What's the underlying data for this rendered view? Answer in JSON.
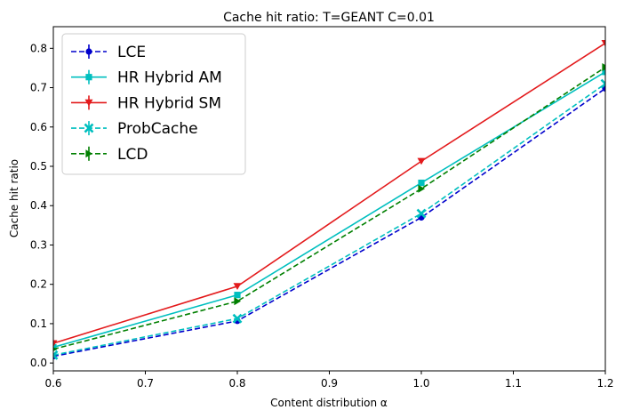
{
  "chart_data": {
    "type": "line",
    "title": "Cache hit ratio: T=GEANT C=0.01",
    "xlabel": "Content distribution α",
    "ylabel": "Cache hit ratio",
    "xlim": [
      0.6,
      1.2
    ],
    "ylim": [
      -0.02,
      0.855
    ],
    "xticks": [
      "0.6",
      "0.7",
      "0.8",
      "0.9",
      "1.0",
      "1.1",
      "1.2"
    ],
    "yticks": [
      "0.0",
      "0.1",
      "0.2",
      "0.3",
      "0.4",
      "0.5",
      "0.6",
      "0.7",
      "0.8"
    ],
    "grid": false,
    "legend_position": "upper-left",
    "x": [
      0.6,
      0.8,
      1.0,
      1.2
    ],
    "series": [
      {
        "name": "LCE",
        "values": [
          0.017,
          0.107,
          0.37,
          0.698
        ],
        "color": "#0000cc",
        "linestyle": "dashed",
        "marker": "circle"
      },
      {
        "name": "HR Hybrid AM",
        "values": [
          0.04,
          0.173,
          0.458,
          0.74
        ],
        "color": "#00bfbf",
        "linestyle": "solid",
        "marker": "square"
      },
      {
        "name": "HR Hybrid SM",
        "values": [
          0.05,
          0.195,
          0.513,
          0.813
        ],
        "color": "#e31a1c",
        "linestyle": "solid",
        "marker": "triangle-down"
      },
      {
        "name": "ProbCache",
        "values": [
          0.02,
          0.113,
          0.38,
          0.71
        ],
        "color": "#00bfbf",
        "linestyle": "dashed",
        "marker": "x"
      },
      {
        "name": "LCD",
        "values": [
          0.035,
          0.157,
          0.443,
          0.752
        ],
        "color": "#007f00",
        "linestyle": "dashed",
        "marker": "triangle-right"
      }
    ]
  }
}
